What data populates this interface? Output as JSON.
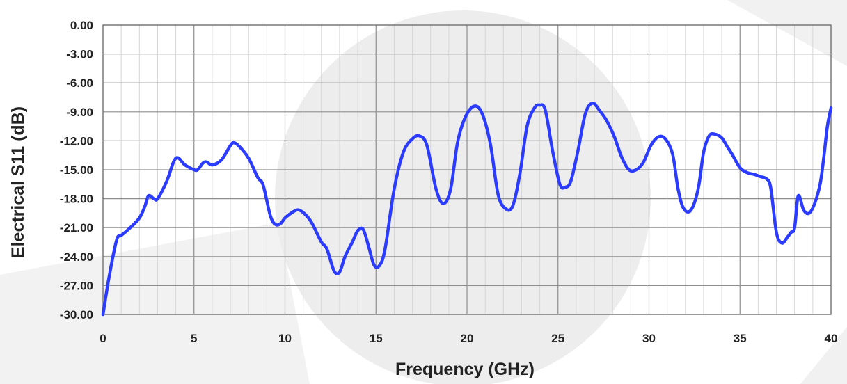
{
  "chart_data": {
    "type": "line",
    "xlabel": "Frequency  (GHz)",
    "ylabel": "Electrical S11 (dB)",
    "xlim": [
      0,
      40
    ],
    "ylim": [
      -30,
      0
    ],
    "x_ticks": [
      0,
      5,
      10,
      15,
      20,
      25,
      30,
      35,
      40
    ],
    "x_tick_labels": [
      "0",
      "5",
      "10",
      "15",
      "20",
      "25",
      "30",
      "35",
      "40"
    ],
    "y_ticks": [
      0,
      -3,
      -6,
      -9,
      -12,
      -15,
      -18,
      -21,
      -24,
      -27,
      -30
    ],
    "y_tick_labels": [
      "0.00",
      "-3.00",
      "-6.00",
      "-9.00",
      "-12.00",
      "-15.00",
      "-18.00",
      "-21.00",
      "-24.00",
      "-27.00",
      "-30.00"
    ],
    "grid": true,
    "minor_x_step": 1,
    "series": [
      {
        "color": "#2b3bff",
        "x": [
          0,
          0.3,
          0.6,
          0.8,
          1.0,
          1.5,
          2.0,
          2.3,
          2.5,
          2.8,
          3.0,
          3.5,
          4.0,
          4.5,
          5.0,
          5.2,
          5.5,
          5.7,
          6.0,
          6.5,
          7.0,
          7.2,
          7.5,
          8.0,
          8.5,
          8.8,
          9.2,
          9.5,
          9.8,
          10.0,
          10.5,
          10.8,
          11.2,
          11.5,
          12.0,
          12.3,
          12.7,
          13.0,
          13.3,
          13.7,
          14.0,
          14.3,
          14.6,
          14.9,
          15.2,
          15.5,
          16.0,
          16.5,
          17.0,
          17.4,
          17.8,
          18.3,
          18.7,
          19.1,
          19.5,
          20.0,
          20.5,
          20.9,
          21.3,
          21.7,
          22.1,
          22.5,
          22.9,
          23.3,
          23.7,
          24.0,
          24.3,
          24.7,
          25.1,
          25.4,
          25.7,
          26.1,
          26.5,
          26.9,
          27.3,
          27.7,
          28.1,
          28.5,
          28.9,
          29.3,
          29.7,
          30.1,
          30.5,
          30.9,
          31.3,
          31.6,
          31.9,
          32.3,
          32.7,
          33.0,
          33.3,
          33.6,
          34.0,
          34.3,
          34.6,
          35.0,
          35.4,
          35.8,
          36.1,
          36.5,
          36.7,
          37.0,
          37.3,
          37.6,
          37.8,
          38.0,
          38.2,
          38.5,
          38.8,
          39.1,
          39.4,
          39.6,
          39.8,
          40.0
        ],
        "y": [
          -30.0,
          -26.5,
          -23.5,
          -22.0,
          -21.8,
          -21.0,
          -20.0,
          -18.8,
          -17.7,
          -18.0,
          -18.0,
          -16.2,
          -13.8,
          -14.5,
          -15.0,
          -15.0,
          -14.3,
          -14.2,
          -14.5,
          -14.0,
          -12.5,
          -12.2,
          -12.6,
          -13.8,
          -15.8,
          -16.6,
          -19.8,
          -20.7,
          -20.5,
          -20.0,
          -19.3,
          -19.2,
          -19.8,
          -20.6,
          -22.5,
          -23.2,
          -25.5,
          -25.6,
          -24.0,
          -22.5,
          -21.3,
          -21.2,
          -23.0,
          -24.9,
          -24.9,
          -23.2,
          -17.0,
          -13.2,
          -11.8,
          -11.5,
          -12.5,
          -17.0,
          -18.5,
          -17.0,
          -12.0,
          -9.2,
          -8.4,
          -9.5,
          -12.5,
          -17.5,
          -19.0,
          -18.8,
          -15.5,
          -10.5,
          -8.6,
          -8.3,
          -8.8,
          -13.0,
          -16.5,
          -16.8,
          -16.2,
          -13.0,
          -9.2,
          -8.1,
          -8.9,
          -10.0,
          -11.6,
          -13.7,
          -15.0,
          -15.0,
          -14.2,
          -12.5,
          -11.6,
          -11.8,
          -13.4,
          -17.0,
          -19.0,
          -19.2,
          -17.0,
          -13.2,
          -11.5,
          -11.3,
          -11.7,
          -12.6,
          -13.5,
          -14.8,
          -15.3,
          -15.5,
          -15.7,
          -16.0,
          -17.0,
          -21.5,
          -22.6,
          -22.0,
          -21.5,
          -21.0,
          -17.7,
          -19.2,
          -19.5,
          -18.5,
          -16.5,
          -13.8,
          -10.5,
          -8.6
        ]
      }
    ]
  }
}
